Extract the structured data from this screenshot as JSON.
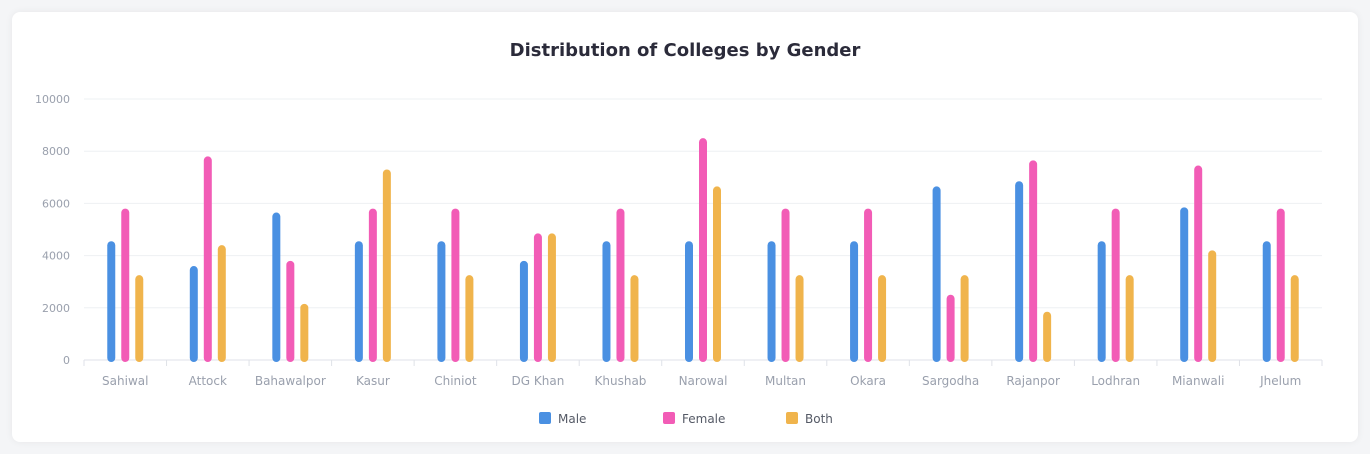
{
  "chart_data": {
    "type": "bar",
    "title": "Distribution of Colleges by Gender",
    "categories": [
      "Sahiwal",
      "Attock",
      "Bahawalpor",
      "Kasur",
      "Chiniot",
      "DG Khan",
      "Khushab",
      "Narowal",
      "Multan",
      "Okara",
      "Sargodha",
      "Rajanpor",
      "Lodhran",
      "Mianwali",
      "Jhelum"
    ],
    "series": [
      {
        "name": "Male",
        "color": "#4a90e2",
        "values": [
          4550,
          3600,
          5650,
          4550,
          4550,
          3800,
          4550,
          4550,
          4550,
          4550,
          6650,
          6850,
          4550,
          5850,
          4550
        ]
      },
      {
        "name": "Female",
        "color": "#f25cb6",
        "values": [
          5800,
          7800,
          3800,
          5800,
          5800,
          4850,
          5800,
          8500,
          5800,
          5800,
          2500,
          7650,
          5800,
          7450,
          5800
        ]
      },
      {
        "name": "Both",
        "color": "#f0b44c",
        "values": [
          3250,
          4400,
          2150,
          7300,
          3250,
          4850,
          3250,
          6650,
          3250,
          3250,
          3250,
          1850,
          3250,
          4200,
          3250
        ]
      }
    ],
    "yticks": [
      "0",
      "2000",
      "4000",
      "6000",
      "8000",
      "10000"
    ],
    "ylim": [
      0,
      10000
    ],
    "grid": true,
    "legend": "bottom-center"
  }
}
